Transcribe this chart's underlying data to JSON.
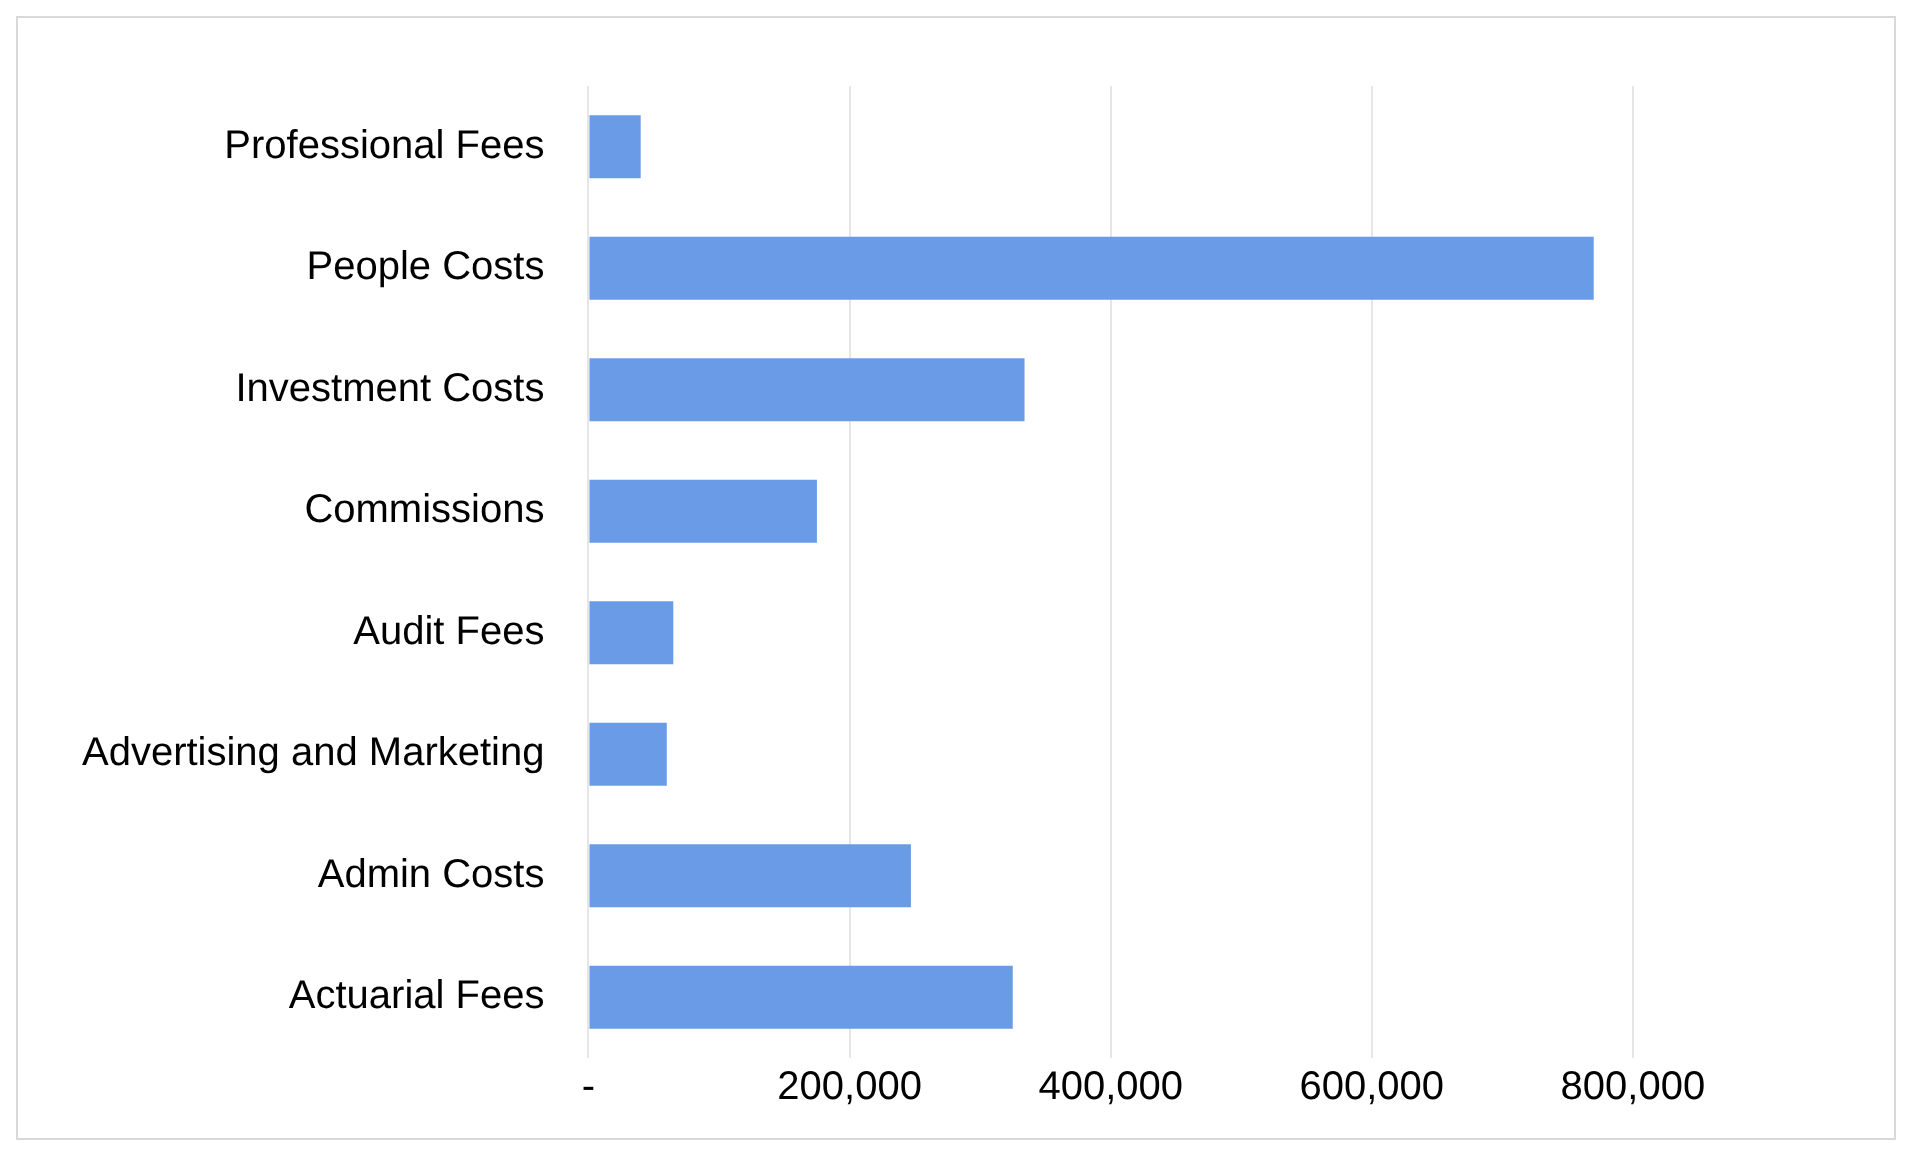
{
  "chart_data": {
    "type": "bar",
    "orientation": "horizontal",
    "categories": [
      "Professional Fees",
      "People Costs",
      "Investment Costs",
      "Commissions",
      "Audit Fees",
      "Advertising and Marketing",
      "Admin Costs",
      "Actuarial Fees"
    ],
    "values": [
      40000,
      770000,
      334000,
      175000,
      65000,
      60000,
      247000,
      325000
    ],
    "color": "#6a9be6",
    "xlim": [
      0,
      1000000
    ],
    "xticks": [
      {
        "value": 0,
        "label": "-"
      },
      {
        "value": 200000,
        "label": "200,000"
      },
      {
        "value": 400000,
        "label": "400,000"
      },
      {
        "value": 600000,
        "label": "600,000"
      },
      {
        "value": 800000,
        "label": "800,000"
      }
    ],
    "grid": "x",
    "legend": false
  }
}
